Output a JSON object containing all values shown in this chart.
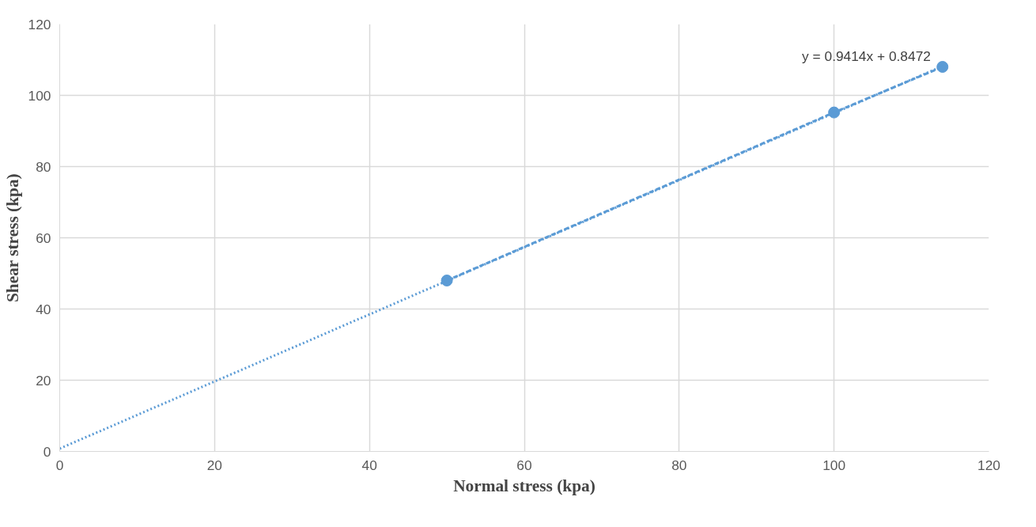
{
  "chart_data": {
    "type": "scatter",
    "xlabel": "Normal stress (kpa)",
    "ylabel": "Shear stress (kpa)",
    "series": [
      {
        "color": "#5b9bd5",
        "x": [
          50,
          100,
          114
        ],
        "values": [
          48,
          95.2,
          108
        ],
        "marker": "circle",
        "line_style": "dashed"
      },
      {
        "type": "line",
        "color": "#5b9bd5",
        "x": [
          0,
          114
        ],
        "values": [
          0.8,
          108.2
        ],
        "line_style": "dotted"
      }
    ],
    "annotations": [
      "y = 0.9414x + 0.8472"
    ],
    "xlim": [
      0,
      120
    ],
    "ylim": [
      0,
      120
    ],
    "xticks": [
      0,
      20,
      40,
      60,
      80,
      100,
      120
    ],
    "yticks": [
      0,
      20,
      40,
      60,
      80,
      100,
      120
    ],
    "grid": true
  }
}
